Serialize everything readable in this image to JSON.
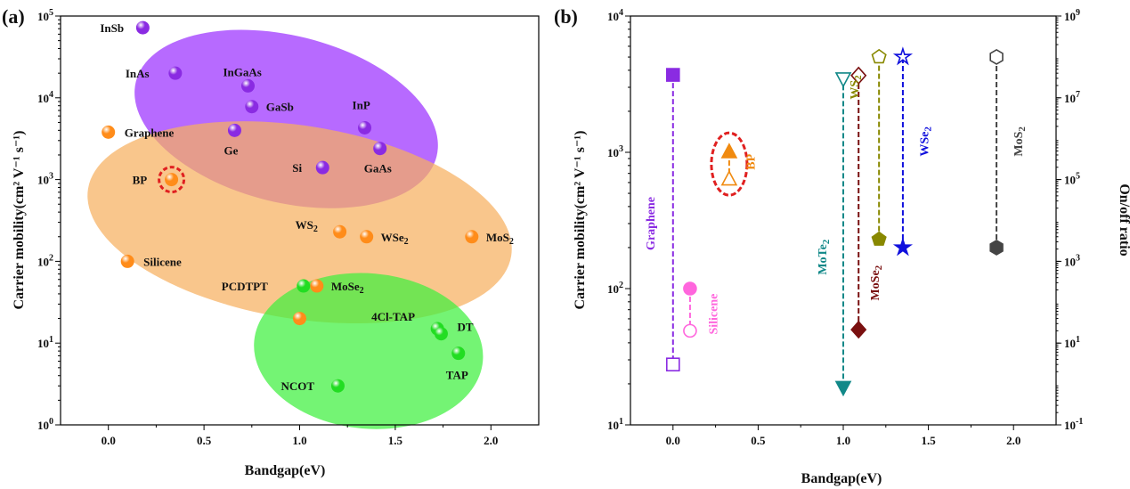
{
  "chart_data": [
    {
      "type": "scatter",
      "panel_label": "(a)",
      "xlabel": "Bandgap(eV)",
      "ylabel": "Carrier mobility(cm² V⁻¹ s⁻¹)",
      "xlim": [
        -0.25,
        2.25
      ],
      "ylim": [
        1,
        100000
      ],
      "yscale": "log",
      "x_ticks": [
        {
          "v": 0,
          "label": "0.0"
        },
        {
          "v": 0.5,
          "label": "0.5"
        },
        {
          "v": 1,
          "label": "1.0"
        },
        {
          "v": 1.5,
          "label": "1.5"
        },
        {
          "v": 2,
          "label": "2.0"
        }
      ],
      "y_ticks": [
        {
          "v": 1,
          "base": "10",
          "exp": "0"
        },
        {
          "v": 10,
          "base": "10",
          "exp": "1"
        },
        {
          "v": 100,
          "base": "10",
          "exp": "2"
        },
        {
          "v": 1000,
          "base": "10",
          "exp": "3"
        },
        {
          "v": 10000,
          "base": "10",
          "exp": "4"
        },
        {
          "v": 100000,
          "base": "10",
          "exp": "5"
        }
      ],
      "regions": [
        {
          "color": "#9b30ff",
          "cx": 0.93,
          "cy": 5500,
          "rx": 0.81,
          "rdec": 1.02,
          "angle": 14
        },
        {
          "color": "#f7b060",
          "cx": 1.0,
          "cy": 300,
          "rx": 1.12,
          "rdec": 1.18,
          "angle": 9
        },
        {
          "color": "#3ff03f",
          "cx": 1.36,
          "cy": 8,
          "rx": 0.6,
          "rdec": 0.95,
          "angle": 5
        }
      ],
      "points": [
        {
          "name": "InSb",
          "x": 0.18,
          "y": 72000,
          "color": "#8a2be2",
          "dx": -48,
          "dy": 0
        },
        {
          "name": "InAs",
          "x": 0.35,
          "y": 20000,
          "color": "#8a2be2",
          "dx": -56,
          "dy": 0
        },
        {
          "name": "InGaAs",
          "x": 0.73,
          "y": 14000,
          "color": "#8a2be2",
          "dx": -28,
          "dy": -16
        },
        {
          "name": "GaSb",
          "x": 0.75,
          "y": 7800,
          "color": "#8a2be2",
          "dx": 16,
          "dy": 0
        },
        {
          "name": "InP",
          "x": 1.34,
          "y": 4300,
          "color": "#8a2be2",
          "dx": -14,
          "dy": -26
        },
        {
          "name": "Ge",
          "x": 0.66,
          "y": 4000,
          "color": "#8a2be2",
          "dx": -12,
          "dy": 22
        },
        {
          "name": "GaAs",
          "x": 1.42,
          "y": 2400,
          "color": "#8a2be2",
          "dx": -18,
          "dy": 22
        },
        {
          "name": "Si",
          "x": 1.12,
          "y": 1400,
          "color": "#8a2be2",
          "dx": -34,
          "dy": 0
        },
        {
          "name": "Graphene",
          "x": 0.0,
          "y": 3800,
          "color": "#ff8c1a",
          "dx": 18,
          "dy": 0
        },
        {
          "name": "BP",
          "x": 0.33,
          "y": 1000,
          "color": "#ff8c1a",
          "dx": -44,
          "dy": 0
        },
        {
          "name": "WS2",
          "x": 1.21,
          "y": 230,
          "color": "#ff8c1a",
          "dx": -50,
          "dy": -8
        },
        {
          "name": "WSe2",
          "x": 1.35,
          "y": 200,
          "color": "#ff8c1a",
          "dx": 16,
          "dy": 0
        },
        {
          "name": "MoS2",
          "x": 1.9,
          "y": 200,
          "color": "#ff8c1a",
          "dx": 16,
          "dy": 0
        },
        {
          "name": "Silicene",
          "x": 0.1,
          "y": 100,
          "color": "#ff8c1a",
          "dx": 18,
          "dy": 0
        },
        {
          "name": "MoSe2",
          "x": 1.09,
          "y": 50,
          "color": "#ff8c1a",
          "dx": 16,
          "dy": 0
        },
        {
          "name": "",
          "x": 1.0,
          "y": 20,
          "color": "#ff8c1a",
          "dx": 0,
          "dy": 0
        },
        {
          "name": "PCDTPT",
          "x": 1.02,
          "y": 50,
          "color": "#22dd22",
          "dx": -92,
          "dy": 0
        },
        {
          "name": "4Cl-TAP",
          "x": 1.72,
          "y": 15,
          "color": "#22dd22",
          "dx": -74,
          "dy": -14
        },
        {
          "name": "DT",
          "x": 1.74,
          "y": 13,
          "color": "#22dd22",
          "dx": 18,
          "dy": -8
        },
        {
          "name": "TAP",
          "x": 1.83,
          "y": 7.5,
          "color": "#22dd22",
          "dx": -14,
          "dy": 24
        },
        {
          "name": "NCOT",
          "x": 1.2,
          "y": 3,
          "color": "#22dd22",
          "dx": -64,
          "dy": 0
        }
      ],
      "highlight": {
        "x": 0.33,
        "y": 1000,
        "color": "#e02020"
      }
    },
    {
      "type": "scatter",
      "panel_label": "(b)",
      "xlabel": "Bandgap(eV)",
      "ylabel": "Carrier mobility(cm² V⁻¹ s⁻¹)",
      "y2label": "On/off ratio",
      "xlim": [
        -0.25,
        2.25
      ],
      "ylim": [
        10,
        10000
      ],
      "yscale": "log",
      "y2lim": [
        0.1,
        1000000000
      ],
      "y2scale": "log",
      "x_ticks": [
        {
          "v": 0,
          "label": "0.0"
        },
        {
          "v": 0.5,
          "label": "0.5"
        },
        {
          "v": 1,
          "label": "1.0"
        },
        {
          "v": 1.5,
          "label": "1.5"
        },
        {
          "v": 2,
          "label": "2.0"
        }
      ],
      "y_ticks": [
        {
          "v": 10,
          "base": "10",
          "exp": "1"
        },
        {
          "v": 100,
          "base": "10",
          "exp": "2"
        },
        {
          "v": 1000,
          "base": "10",
          "exp": "3"
        },
        {
          "v": 10000,
          "base": "10",
          "exp": "4"
        }
      ],
      "y2_ticks": [
        {
          "v": 0.1,
          "base": "10",
          "exp": "-1"
        },
        {
          "v": 10,
          "base": "10",
          "exp": "1"
        },
        {
          "v": 1000,
          "base": "10",
          "exp": "3"
        },
        {
          "v": 100000,
          "base": "10",
          "exp": "5"
        },
        {
          "v": 10000000,
          "base": "10",
          "exp": "7"
        },
        {
          "v": 1000000000,
          "base": "10",
          "exp": "9"
        }
      ],
      "materials": [
        {
          "name": "Graphene",
          "x": 0.0,
          "color": "#8a2be2",
          "shape": "square",
          "mobility": 3700,
          "onoff": 3,
          "label_x": -0.11,
          "label_y": 300
        },
        {
          "name": "Silicene",
          "x": 0.1,
          "color": "#ff66dd",
          "shape": "circle",
          "mobility": 100,
          "onoff": 20,
          "label_x": 0.26,
          "label_y": 65
        },
        {
          "name": "BP",
          "x": 0.33,
          "color": "#f08a10",
          "shape": "triangle-up",
          "mobility": 1000,
          "onoff": 100000,
          "label_x": 0.48,
          "label_y": 850
        },
        {
          "name": "MoTe2",
          "x": 1.0,
          "color": "#118888",
          "shape": "triangle-down",
          "mobility": 19,
          "onoff": 30000000,
          "label_x": 0.9,
          "label_y": 170
        },
        {
          "name": "MoSe2",
          "x": 1.09,
          "color": "#7a1010",
          "shape": "diamond",
          "mobility": 50,
          "onoff": 35000000,
          "label_x": 1.21,
          "label_y": 110
        },
        {
          "name": "WS2",
          "x": 1.21,
          "color": "#888800",
          "shape": "pentagon",
          "mobility": 230,
          "onoff": 100000000,
          "label_x": 1.09,
          "label_y": 3000
        },
        {
          "name": "WSe2",
          "x": 1.35,
          "color": "#1010dd",
          "shape": "star",
          "mobility": 200,
          "onoff": 100000000,
          "label_x": 1.5,
          "label_y": 1200
        },
        {
          "name": "MoS2",
          "x": 1.9,
          "color": "#444444",
          "shape": "hexagon",
          "mobility": 200,
          "onoff": 100000000,
          "label_x": 2.05,
          "label_y": 1200
        }
      ],
      "highlight": {
        "x": 0.33,
        "y": 820,
        "color": "#e02020"
      }
    }
  ]
}
